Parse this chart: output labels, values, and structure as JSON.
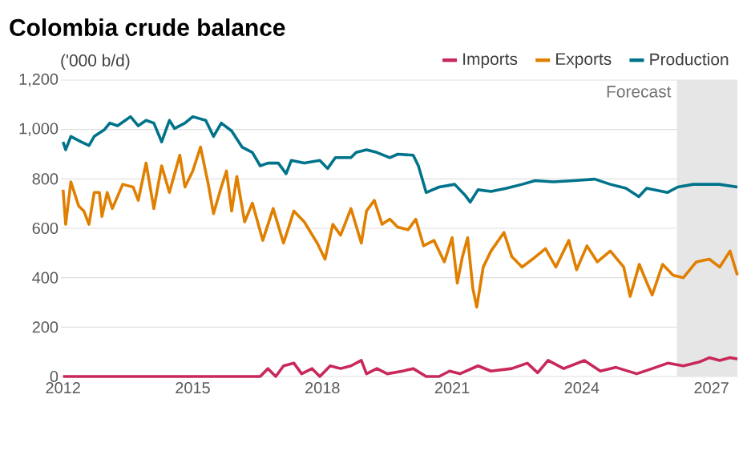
{
  "chart_data": {
    "type": "line",
    "title": "Colombia crude balance",
    "ylabel": "('000 b/d)",
    "xlim": [
      2011.95,
      2027.6
    ],
    "xticks": [
      2012,
      2015,
      2018,
      2021,
      2024,
      2027
    ],
    "ylim": [
      0,
      1200
    ],
    "yticks": [
      0,
      200,
      400,
      600,
      800,
      {
        "value": 1000,
        "label": "1,000"
      },
      {
        "value": 1200,
        "label": "1,200"
      }
    ],
    "grid": "y",
    "legend": "top right",
    "bands": [
      {
        "axis": "x",
        "from": 2026.2,
        "to": 2027.6,
        "label": "Forecast",
        "color": "#e6e6e6"
      }
    ],
    "series": [
      {
        "name": "Imports",
        "color": "#c8285a",
        "x": [
          2012.0,
          2016.56,
          2016.74,
          2016.92,
          2017.1,
          2017.34,
          2017.52,
          2017.76,
          2017.94,
          2018.18,
          2018.42,
          2018.66,
          2018.9,
          2019.02,
          2019.26,
          2019.5,
          2019.86,
          2020.1,
          2020.4,
          2020.7,
          2020.94,
          2021.18,
          2021.6,
          2021.9,
          2022.38,
          2022.74,
          2022.98,
          2023.22,
          2023.58,
          2024.06,
          2024.43,
          2024.79,
          2025.27,
          2025.63,
          2025.99,
          2026.35,
          2026.71,
          2026.95,
          2027.19,
          2027.43,
          2027.6
        ],
        "values": [
          0,
          0,
          32,
          0,
          43,
          54,
          11,
          32,
          0,
          43,
          32,
          43,
          65,
          11,
          32,
          11,
          22,
          32,
          0,
          0,
          22,
          11,
          43,
          22,
          32,
          54,
          15,
          65,
          32,
          65,
          22,
          37,
          11,
          32,
          54,
          43,
          58,
          76,
          65,
          76,
          71
        ]
      },
      {
        "name": "Exports",
        "color": "#e07f00",
        "x": [
          2012.0,
          2012.06,
          2012.18,
          2012.36,
          2012.48,
          2012.6,
          2012.72,
          2012.84,
          2012.9,
          2013.02,
          2013.14,
          2013.38,
          2013.62,
          2013.74,
          2013.92,
          2014.1,
          2014.28,
          2014.46,
          2014.7,
          2014.82,
          2015.0,
          2015.18,
          2015.36,
          2015.48,
          2015.66,
          2015.78,
          2015.9,
          2016.02,
          2016.2,
          2016.38,
          2016.62,
          2016.86,
          2017.1,
          2017.34,
          2017.58,
          2017.88,
          2018.06,
          2018.24,
          2018.42,
          2018.66,
          2018.9,
          2019.02,
          2019.2,
          2019.38,
          2019.56,
          2019.74,
          2019.98,
          2020.16,
          2020.34,
          2020.58,
          2020.82,
          2021.0,
          2021.12,
          2021.24,
          2021.36,
          2021.48,
          2021.57,
          2021.72,
          2021.9,
          2022.2,
          2022.38,
          2022.62,
          2022.86,
          2023.16,
          2023.4,
          2023.7,
          2023.88,
          2024.12,
          2024.36,
          2024.66,
          2024.97,
          2025.12,
          2025.33,
          2025.51,
          2025.63,
          2025.87,
          2026.11,
          2026.35,
          2026.65,
          2026.95,
          2027.19,
          2027.43,
          2027.6
        ],
        "values": [
          756,
          616,
          788,
          691,
          670,
          616,
          745,
          745,
          648,
          745,
          680,
          778,
          767,
          713,
          864,
          680,
          853,
          745,
          896,
          767,
          832,
          929,
          778,
          659,
          767,
          832,
          670,
          810,
          626,
          702,
          551,
          680,
          540,
          670,
          626,
          540,
          475,
          616,
          572,
          680,
          540,
          670,
          713,
          616,
          637,
          605,
          594,
          637,
          529,
          551,
          464,
          562,
          378,
          486,
          562,
          356,
          281,
          443,
          508,
          583,
          486,
          443,
          475,
          518,
          443,
          551,
          432,
          529,
          464,
          508,
          443,
          324,
          454,
          378,
          330,
          454,
          410,
          400,
          464,
          475,
          443,
          508,
          410
        ]
      },
      {
        "name": "Production",
        "color": "#00738a",
        "x": [
          2012.0,
          2012.06,
          2012.18,
          2012.42,
          2012.6,
          2012.72,
          2012.96,
          2013.08,
          2013.26,
          2013.44,
          2013.56,
          2013.74,
          2013.92,
          2014.1,
          2014.28,
          2014.46,
          2014.58,
          2014.82,
          2015.0,
          2015.3,
          2015.48,
          2015.66,
          2015.9,
          2016.14,
          2016.38,
          2016.56,
          2016.74,
          2016.98,
          2017.16,
          2017.28,
          2017.58,
          2017.94,
          2018.12,
          2018.3,
          2018.66,
          2018.78,
          2019.02,
          2019.26,
          2019.56,
          2019.74,
          2020.1,
          2020.22,
          2020.4,
          2020.7,
          2021.06,
          2021.3,
          2021.42,
          2021.6,
          2021.9,
          2022.26,
          2022.62,
          2022.92,
          2023.34,
          2023.82,
          2024.3,
          2024.66,
          2025.02,
          2025.32,
          2025.5,
          2025.98,
          2026.22,
          2026.58,
          2027.18,
          2027.6
        ],
        "values": [
          950,
          918,
          972,
          950,
          935,
          972,
          1000,
          1026,
          1015,
          1037,
          1052,
          1015,
          1037,
          1026,
          950,
          1037,
          1004,
          1026,
          1052,
          1037,
          972,
          1026,
          994,
          929,
          907,
          853,
          864,
          864,
          821,
          875,
          864,
          875,
          842,
          886,
          886,
          907,
          918,
          907,
          886,
          900,
          896,
          853,
          745,
          767,
          778,
          734,
          706,
          756,
          749,
          762,
          778,
          793,
          788,
          793,
          799,
          778,
          762,
          728,
          762,
          745,
          767,
          778,
          778,
          767
        ]
      }
    ]
  }
}
